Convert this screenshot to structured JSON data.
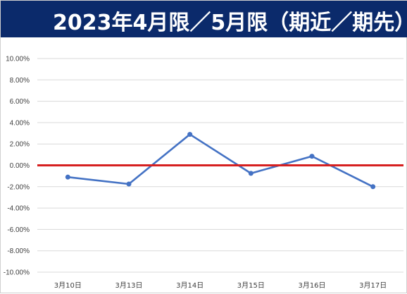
{
  "title": "2023年4月限／5月限（期近／期先）",
  "colors": {
    "header_bg": "#0b2a6b",
    "header_text": "#ffffff",
    "series_line": "#4472c4",
    "zero_line": "#d62020",
    "gridline": "#d9d9d9",
    "tick_text": "#404040"
  },
  "chart_data": {
    "type": "line",
    "title": "2023年4月限／5月限（期近／期先）",
    "xlabel": "",
    "ylabel": "",
    "categories": [
      "3月10日",
      "3月13日",
      "3月14日",
      "3月15日",
      "3月16日",
      "3月17日"
    ],
    "series": [
      {
        "values": [
          -0.011,
          -0.0175,
          0.029,
          -0.0075,
          0.0085,
          -0.02
        ]
      }
    ],
    "reference_line": {
      "y": 0.0
    },
    "ylim": [
      -0.1,
      0.1
    ],
    "yticks": [
      0.1,
      0.08,
      0.06,
      0.04,
      0.02,
      0.0,
      -0.02,
      -0.04,
      -0.06,
      -0.08,
      -0.1
    ],
    "ytick_labels": [
      "10.00%",
      "8.00%",
      "6.00%",
      "4.00%",
      "2.00%",
      "0.00%",
      "-2.00%",
      "-4.00%",
      "-6.00%",
      "-8.00%",
      "-10.00%"
    ],
    "grid": true,
    "legend": "none"
  }
}
